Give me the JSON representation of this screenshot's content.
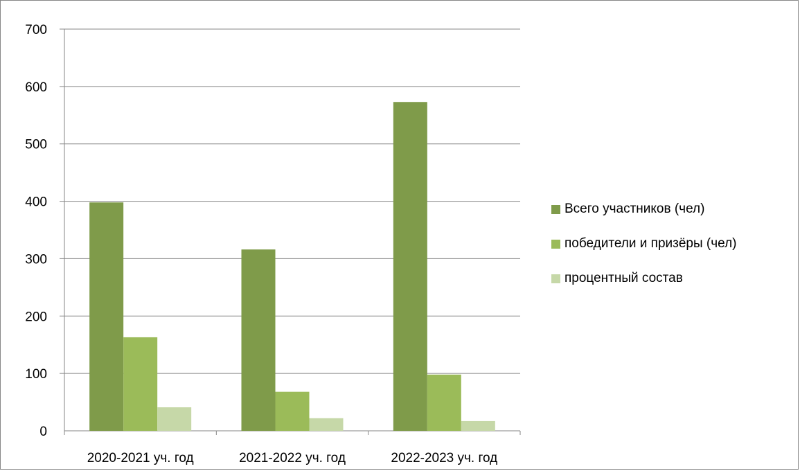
{
  "chart_data": {
    "type": "bar",
    "categories": [
      "2020-2021 уч. год",
      "2021-2022 уч. год",
      "2022-2023 уч. год"
    ],
    "series": [
      {
        "name": "Всего участников (чел)",
        "values": [
          398,
          316,
          573
        ],
        "color": "#7f9b4a"
      },
      {
        "name": "победители и призёры (чел)",
        "values": [
          163,
          68,
          98
        ],
        "color": "#9bbb59"
      },
      {
        "name": "процентный состав",
        "values": [
          41,
          22,
          17
        ],
        "color": "#c6d8a8"
      }
    ],
    "title": "",
    "xlabel": "",
    "ylabel": "",
    "ylim": [
      0,
      700
    ],
    "yticks": [
      "0",
      "100",
      "200",
      "300",
      "400",
      "500",
      "600",
      "700"
    ],
    "grid": true,
    "legend_position": "right"
  }
}
